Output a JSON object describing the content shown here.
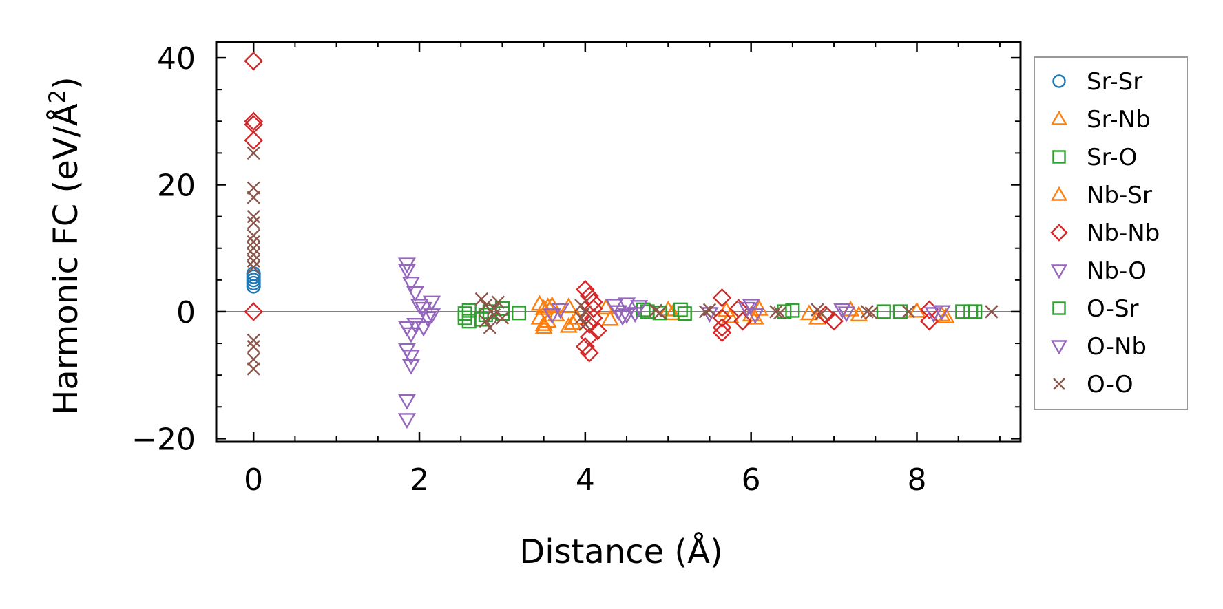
{
  "chart_data": {
    "type": "scatter",
    "xlabel": "Distance (Å)",
    "ylabel_main": "Harmonic FC (eV/Å",
    "ylabel_sup": "2",
    "ylabel_close": ")",
    "xlim": [
      -0.45,
      9.25
    ],
    "ylim": [
      -20.5,
      42.5
    ],
    "xticks": [
      0,
      2,
      4,
      6,
      8
    ],
    "yticks": [
      -20,
      0,
      20,
      40
    ],
    "xtick_labels": [
      "0",
      "2",
      "4",
      "6",
      "8"
    ],
    "ytick_labels": [
      "−20",
      "0",
      "20",
      "40"
    ],
    "legend_position": "right, outside plot",
    "zero_line": true,
    "series": [
      {
        "name": "Sr-Sr",
        "marker": "circle",
        "color": "#1f77b4",
        "points": [
          [
            0,
            6
          ],
          [
            0,
            5.5
          ],
          [
            0,
            5
          ],
          [
            0,
            4.5
          ],
          [
            0,
            4
          ]
        ]
      },
      {
        "name": "Sr-Nb",
        "marker": "triangle-up",
        "color": "#ff7f0e",
        "points": [
          [
            3.45,
            1.2
          ],
          [
            3.45,
            -1
          ],
          [
            3.5,
            0.5
          ],
          [
            3.5,
            -2.5
          ],
          [
            3.55,
            -1.5
          ],
          [
            3.6,
            1
          ],
          [
            3.65,
            -0.5
          ],
          [
            3.8,
            0.8
          ],
          [
            3.8,
            -2.3
          ],
          [
            3.9,
            -1
          ],
          [
            4.25,
            0.6
          ],
          [
            4.3,
            -1.2
          ],
          [
            5.0,
            0.3
          ],
          [
            5.05,
            -0.3
          ],
          [
            5.7,
            0.2
          ],
          [
            5.75,
            -0.8
          ],
          [
            6.05,
            -1
          ],
          [
            6.1,
            0.4
          ],
          [
            6.7,
            -0.3
          ],
          [
            6.8,
            -1
          ],
          [
            7.2,
            0.3
          ],
          [
            7.3,
            -0.5
          ],
          [
            8.0,
            0.1
          ],
          [
            8.3,
            -0.5
          ],
          [
            8.35,
            -0.8
          ]
        ]
      },
      {
        "name": "Sr-O",
        "marker": "square",
        "color": "#2ca02c",
        "points": [
          [
            2.55,
            -1
          ],
          [
            2.55,
            -0.3
          ],
          [
            2.6,
            0.2
          ],
          [
            2.75,
            -1.2
          ],
          [
            2.8,
            -0.5
          ],
          [
            3.0,
            -0.3
          ],
          [
            3.0,
            0.5
          ],
          [
            3.2,
            -0.2
          ],
          [
            4.7,
            0.3
          ],
          [
            4.75,
            0
          ],
          [
            4.9,
            -0.2
          ],
          [
            5.15,
            0.3
          ],
          [
            5.2,
            -0.3
          ],
          [
            6.4,
            0
          ],
          [
            6.5,
            0.2
          ],
          [
            7.6,
            0
          ],
          [
            7.8,
            0
          ],
          [
            8.55,
            0
          ],
          [
            8.65,
            0
          ]
        ]
      },
      {
        "name": "Nb-Sr",
        "marker": "triangle-up",
        "color": "#ff7f0e",
        "points": [
          [
            3.5,
            -2
          ],
          [
            3.55,
            0.8
          ],
          [
            3.85,
            -1.8
          ],
          [
            6.0,
            -0.5
          ]
        ]
      },
      {
        "name": "Nb-Nb",
        "marker": "diamond",
        "color": "#d62728",
        "points": [
          [
            0,
            39.5
          ],
          [
            0,
            30
          ],
          [
            0,
            29.5
          ],
          [
            0,
            27
          ],
          [
            0,
            0
          ],
          [
            4.0,
            3.5
          ],
          [
            4.05,
            2.5
          ],
          [
            4.05,
            -2
          ],
          [
            4.05,
            -4
          ],
          [
            4.0,
            -5.5
          ],
          [
            4.05,
            -6.5
          ],
          [
            4.1,
            1.5
          ],
          [
            4.1,
            -1
          ],
          [
            4.15,
            -3
          ],
          [
            4.1,
            0.5
          ],
          [
            5.65,
            2.2
          ],
          [
            5.65,
            -1
          ],
          [
            5.65,
            -2.5
          ],
          [
            5.65,
            -3.3
          ],
          [
            5.85,
            0.5
          ],
          [
            5.9,
            -1.5
          ],
          [
            6.9,
            -0.5
          ],
          [
            7.0,
            -1.5
          ],
          [
            8.15,
            0.3
          ],
          [
            8.15,
            -1.5
          ]
        ]
      },
      {
        "name": "Nb-O",
        "marker": "triangle-down",
        "color": "#9467bd",
        "points": [
          [
            1.85,
            7.5
          ],
          [
            1.85,
            6.5
          ],
          [
            1.9,
            4.5
          ],
          [
            1.95,
            3
          ],
          [
            2.0,
            1
          ],
          [
            2.05,
            0.5
          ],
          [
            2.1,
            -1
          ],
          [
            2.15,
            1.5
          ],
          [
            2.15,
            -0.5
          ],
          [
            1.85,
            -2.5
          ],
          [
            1.9,
            -3.5
          ],
          [
            1.85,
            -6
          ],
          [
            1.9,
            -8.5
          ],
          [
            1.85,
            -14
          ],
          [
            1.85,
            -17
          ],
          [
            3.6,
            -0.5
          ],
          [
            3.7,
            0.3
          ],
          [
            4.35,
            1
          ],
          [
            4.4,
            0
          ],
          [
            4.45,
            -0.8
          ],
          [
            4.5,
            1.2
          ],
          [
            4.6,
            -0.3
          ],
          [
            4.65,
            0.8
          ],
          [
            5.5,
            -0.3
          ],
          [
            6.0,
            1
          ],
          [
            6.05,
            -0.5
          ],
          [
            7.1,
            0.3
          ],
          [
            7.15,
            -0.2
          ],
          [
            8.2,
            -0.3
          ],
          [
            8.3,
            0
          ]
        ]
      },
      {
        "name": "O-Sr",
        "marker": "square",
        "color": "#2ca02c",
        "points": [
          [
            2.6,
            -1.5
          ],
          [
            2.85,
            0
          ],
          [
            8.7,
            0
          ]
        ]
      },
      {
        "name": "O-Nb",
        "marker": "triangle-down",
        "color": "#9467bd",
        "points": [
          [
            1.9,
            -7
          ],
          [
            1.95,
            -2
          ],
          [
            2.05,
            -2.5
          ],
          [
            4.5,
            -0.5
          ],
          [
            5.95,
            0.5
          ]
        ]
      },
      {
        "name": "O-O",
        "marker": "x",
        "color": "#8c564b",
        "points": [
          [
            0,
            25
          ],
          [
            0,
            19.5
          ],
          [
            0,
            18
          ],
          [
            0,
            15
          ],
          [
            0,
            14
          ],
          [
            0,
            12
          ],
          [
            0,
            11
          ],
          [
            0,
            10
          ],
          [
            0,
            9
          ],
          [
            0,
            8
          ],
          [
            0,
            7
          ],
          [
            0,
            -4.5
          ],
          [
            0,
            -5.5
          ],
          [
            0,
            -7.5
          ],
          [
            0,
            -9
          ],
          [
            2.75,
            2
          ],
          [
            2.8,
            1
          ],
          [
            2.8,
            -1.5
          ],
          [
            2.85,
            -2.5
          ],
          [
            2.9,
            0.5
          ],
          [
            2.9,
            -0.5
          ],
          [
            2.95,
            1.5
          ],
          [
            3.0,
            -1
          ],
          [
            3.95,
            1
          ],
          [
            3.95,
            -1
          ],
          [
            4.0,
            0
          ],
          [
            4.0,
            -2
          ],
          [
            4.85,
            0.2
          ],
          [
            4.9,
            -0.2
          ],
          [
            5.45,
            0
          ],
          [
            5.5,
            0.3
          ],
          [
            6.3,
            0
          ],
          [
            6.35,
            -0.2
          ],
          [
            6.8,
            0.3
          ],
          [
            6.85,
            -0.3
          ],
          [
            7.4,
            0
          ],
          [
            7.45,
            -0.2
          ],
          [
            7.9,
            0
          ],
          [
            8.9,
            0
          ]
        ]
      }
    ]
  }
}
